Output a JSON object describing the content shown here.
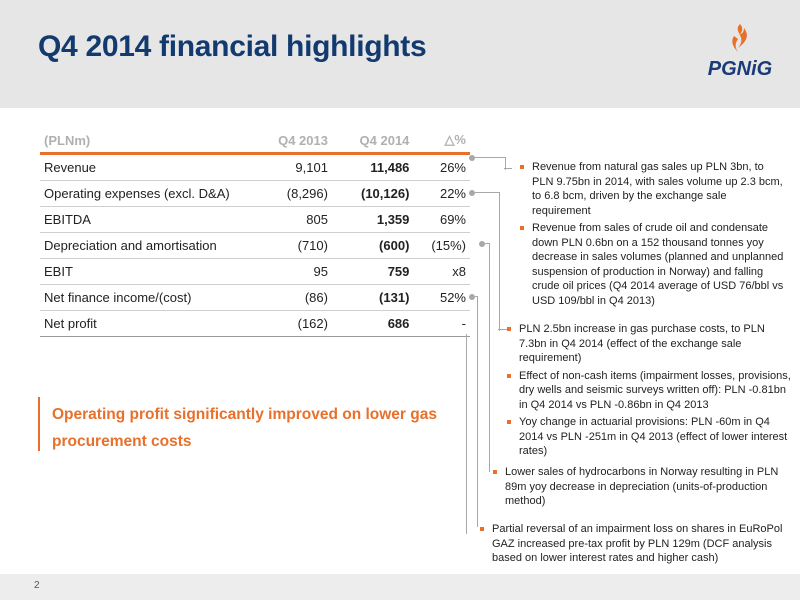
{
  "slide": {
    "title": "Q4 2014 financial highlights",
    "page_number": "2"
  },
  "logo": {
    "text": "PGNiG",
    "brand_color": "#1a3b78",
    "flame_color": "#e8702a"
  },
  "table": {
    "headers": [
      "(PLNm)",
      "Q4 2013",
      "Q4 2014",
      "△%"
    ],
    "rows": [
      {
        "label": "Revenue",
        "q4_2013": "9,101",
        "q4_2014": "11,486",
        "delta": "26%"
      },
      {
        "label": "Operating expenses (excl. D&A)",
        "q4_2013": "(8,296)",
        "q4_2014": "(10,126)",
        "delta": "22%"
      },
      {
        "label": "EBITDA",
        "q4_2013": "805",
        "q4_2014": "1,359",
        "delta": "69%"
      },
      {
        "label": "Depreciation and amortisation",
        "q4_2013": "(710)",
        "q4_2014": "(600)",
        "delta": "(15%)"
      },
      {
        "label": "EBIT",
        "q4_2013": "95",
        "q4_2014": "759",
        "delta": "x8"
      },
      {
        "label": "Net finance income/(cost)",
        "q4_2013": "(86)",
        "q4_2014": "(131)",
        "delta": "52%"
      },
      {
        "label": "Net profit",
        "q4_2013": "(162)",
        "q4_2014": "686",
        "delta": "-"
      }
    ]
  },
  "highlight": {
    "text": "Operating profit significantly improved on lower gas procurement costs"
  },
  "notes": {
    "revenue": [
      "Revenue from natural gas sales up PLN 3bn, to PLN 9.75bn in 2014, with sales volume up 2.3 bcm, to 6.8 bcm, driven by the exchange sale requirement",
      "Revenue from sales of crude oil and condensate down PLN 0.6bn on a 152 thousand tonnes yoy decrease in sales volumes (planned and unplanned suspension of production in Norway) and falling crude oil prices (Q4 2014 average of USD 76/bbl vs USD 109/bbl in Q4 2013)"
    ],
    "opex": [
      "PLN 2.5bn increase in gas purchase costs, to PLN 7.3bn in Q4 2014 (effect of the exchange sale requirement)",
      "Effect of non-cash items (impairment losses, provisions, dry wells and seismic surveys written off): PLN -0.81bn in Q4 2014 vs PLN -0.86bn in Q4 2013",
      "Yoy change in actuarial provisions: PLN -60m in Q4 2014 vs PLN -251m in Q4 2013 (effect of lower interest rates)"
    ],
    "depreciation": [
      "Lower sales of hydrocarbons in Norway resulting in PLN 89m yoy decrease in depreciation (units-of-production method)"
    ],
    "finance": [
      "Partial reversal of an impairment loss on shares in EuRoPol GAZ increased pre-tax profit by PLN 129m (DCF analysis based on lower interest rates and higher cash)"
    ]
  },
  "colors": {
    "accent": "#e8702a",
    "title": "#123a6e",
    "header_band": "#e6e6e6"
  }
}
